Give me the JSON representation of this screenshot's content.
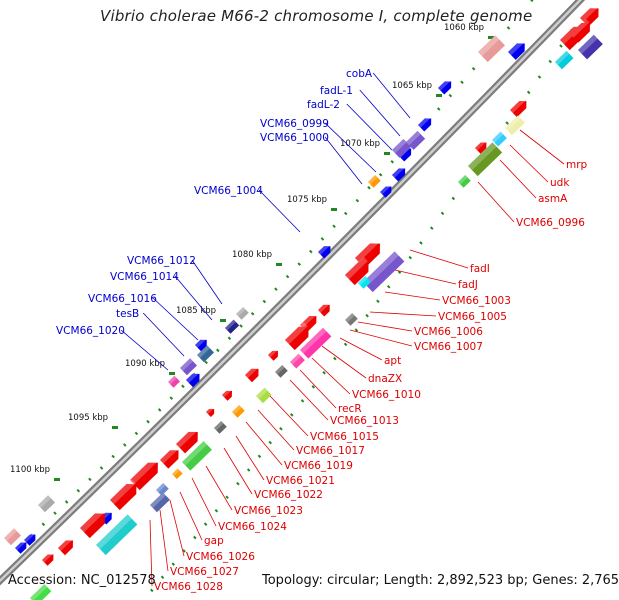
{
  "title": "Vibrio cholerae M66-2 chromosome I, complete genome",
  "footer": {
    "accession": "Accession: NC_012578",
    "summary": "Topology: circular; Length: 2,892,523 bp; Genes: 2,765"
  },
  "colors": {
    "forward_label": "#0000cc",
    "reverse_label": "#dd0000",
    "forward_feature": "#0000ee",
    "reverse_feature": "#ee0000",
    "backbone": "#888888",
    "tick_major": "#228822"
  },
  "scale_labels": [
    "1060 kbp",
    "1065 kbp",
    "1070 kbp",
    "1075 kbp",
    "1080 kbp",
    "1085 kbp",
    "1090 kbp",
    "1095 kbp",
    "1100 kbp"
  ],
  "forward_genes": [
    "cobA",
    "fadL-1",
    "fadL-2",
    "VCM66_0999",
    "VCM66_1000",
    "VCM66_1004",
    "VCM66_1012",
    "VCM66_1014",
    "VCM66_1016",
    "tesB",
    "VCM66_1020"
  ],
  "reverse_genes": [
    "mrp",
    "udk",
    "asmA",
    "VCM66_0996",
    "fadI",
    "fadJ",
    "VCM66_1003",
    "VCM66_1005",
    "VCM66_1006",
    "VCM66_1007",
    "apt",
    "dnaZX",
    "VCM66_1010",
    "recR",
    "VCM66_1013",
    "VCM66_1015",
    "VCM66_1017",
    "VCM66_1019",
    "VCM66_1021",
    "VCM66_1022",
    "VCM66_1023",
    "VCM66_1024",
    "gap",
    "VCM66_1026",
    "VCM66_1027",
    "VCM66_1028"
  ]
}
